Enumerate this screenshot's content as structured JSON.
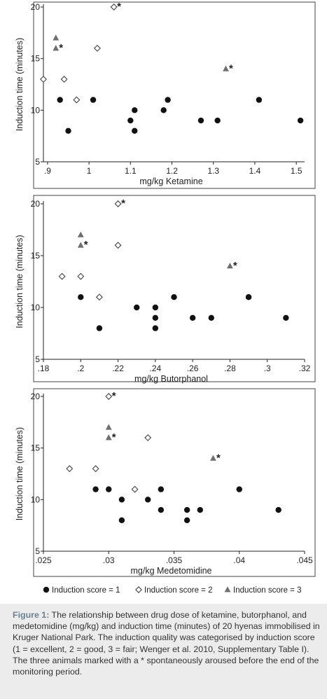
{
  "chart_data": [
    {
      "type": "scatter",
      "xlabel": "mg/kg Ketamine",
      "ylabel": "Induction time (minutes)",
      "xlim": [
        0.89,
        1.52
      ],
      "ylim": [
        5,
        20
      ],
      "xticks": [
        0.9,
        1.0,
        1.1,
        1.2,
        1.3,
        1.4,
        1.5
      ],
      "xtick_labels": [
        ".9",
        "1",
        "1.1",
        "1.2",
        "1.3",
        "1.4",
        "1.5"
      ],
      "yticks": [
        5,
        10,
        15,
        20
      ],
      "ytick_labels": [
        "5",
        "10",
        "15",
        "20"
      ],
      "series": [
        {
          "name": "Induction score = 1",
          "marker": "circle",
          "x": [
            0.93,
            0.95,
            1.01,
            1.1,
            1.11,
            1.11,
            1.18,
            1.19,
            1.27,
            1.31,
            1.41,
            1.51
          ],
          "y": [
            11,
            8,
            11,
            9,
            10,
            8,
            10,
            11,
            9,
            9,
            11,
            9
          ]
        },
        {
          "name": "Induction score = 2",
          "marker": "diamond",
          "x": [
            0.89,
            0.94,
            0.97,
            1.02,
            1.06
          ],
          "y": [
            13,
            13,
            11,
            16,
            20
          ],
          "aroused": [
            false,
            false,
            false,
            false,
            true
          ]
        },
        {
          "name": "Induction score = 3",
          "marker": "triangle",
          "x": [
            0.92,
            0.92,
            1.33
          ],
          "y": [
            17,
            16,
            14
          ],
          "aroused": [
            false,
            true,
            true
          ]
        }
      ]
    },
    {
      "type": "scatter",
      "xlabel": "mg/kg Butorphanol",
      "ylabel": "Induction time (minutes)",
      "xlim": [
        0.18,
        0.32
      ],
      "ylim": [
        5,
        20
      ],
      "xticks": [
        0.18,
        0.2,
        0.22,
        0.24,
        0.26,
        0.28,
        0.3,
        0.32
      ],
      "xtick_labels": [
        ".18",
        ".2",
        ".22",
        ".24",
        ".26",
        ".28",
        ".3",
        ".32"
      ],
      "yticks": [
        5,
        10,
        15,
        20
      ],
      "ytick_labels": [
        "5",
        "10",
        "15",
        "20"
      ],
      "series": [
        {
          "name": "Induction score = 1",
          "marker": "circle",
          "x": [
            0.2,
            0.21,
            0.23,
            0.24,
            0.24,
            0.24,
            0.25,
            0.26,
            0.27,
            0.29,
            0.29,
            0.31
          ],
          "y": [
            11,
            8,
            10,
            10,
            9,
            8,
            11,
            9,
            9,
            11,
            11,
            9
          ]
        },
        {
          "name": "Induction score = 2",
          "marker": "diamond",
          "x": [
            0.19,
            0.2,
            0.21,
            0.22,
            0.22
          ],
          "y": [
            13,
            13,
            11,
            16,
            20
          ],
          "aroused": [
            false,
            false,
            false,
            false,
            true
          ]
        },
        {
          "name": "Induction score = 3",
          "marker": "triangle",
          "x": [
            0.2,
            0.2,
            0.28
          ],
          "y": [
            17,
            16,
            14
          ],
          "aroused": [
            false,
            true,
            true
          ]
        }
      ]
    },
    {
      "type": "scatter",
      "xlabel": "mg/kg Medetomidine",
      "ylabel": "Induction time (minutes)",
      "xlim": [
        0.025,
        0.045
      ],
      "ylim": [
        5,
        20
      ],
      "xticks": [
        0.025,
        0.03,
        0.035,
        0.04,
        0.045
      ],
      "xtick_labels": [
        ".025",
        ".03",
        ".035",
        ".04",
        ".045"
      ],
      "yticks": [
        5,
        10,
        15,
        20
      ],
      "ytick_labels": [
        "5",
        "10",
        "15",
        "20"
      ],
      "series": [
        {
          "name": "Induction score = 1",
          "marker": "circle",
          "x": [
            0.029,
            0.03,
            0.031,
            0.031,
            0.033,
            0.034,
            0.034,
            0.036,
            0.036,
            0.037,
            0.04,
            0.043
          ],
          "y": [
            11,
            11,
            10,
            8,
            10,
            11,
            9,
            9,
            8,
            9,
            11,
            9
          ]
        },
        {
          "name": "Induction score = 2",
          "marker": "diamond",
          "x": [
            0.027,
            0.029,
            0.032,
            0.033,
            0.03
          ],
          "y": [
            13,
            13,
            11,
            16,
            20
          ],
          "aroused": [
            false,
            false,
            false,
            false,
            true
          ]
        },
        {
          "name": "Induction score = 3",
          "marker": "triangle",
          "x": [
            0.03,
            0.03,
            0.038
          ],
          "y": [
            17,
            16,
            14
          ],
          "aroused": [
            false,
            true,
            true
          ]
        }
      ]
    }
  ],
  "legend": [
    {
      "label": "Induction score = 1",
      "marker": "circle"
    },
    {
      "label": "Induction score = 2",
      "marker": "diamond"
    },
    {
      "label": "Induction score = 3",
      "marker": "triangle"
    }
  ],
  "aroused_mark": "*",
  "colors": {
    "score1": "#111111",
    "score2": "#444444",
    "score3": "#6e6e6e",
    "panel_border": "#444444"
  },
  "caption": {
    "lead": "Figure 1:",
    "text": " The relationship between drug dose of ketamine, butorphanol, and medetomidine (mg/kg) and induction time (minutes) of 20 hyenas immobilised in Kruger National Park. The induction quality was categorised by induction score (1 = excellent, 2 = good, 3 = fair; Wenger et al. 2010, Supplementary Table I). The three animals marked with a * spontaneously aroused before the end of the monitoring period."
  }
}
